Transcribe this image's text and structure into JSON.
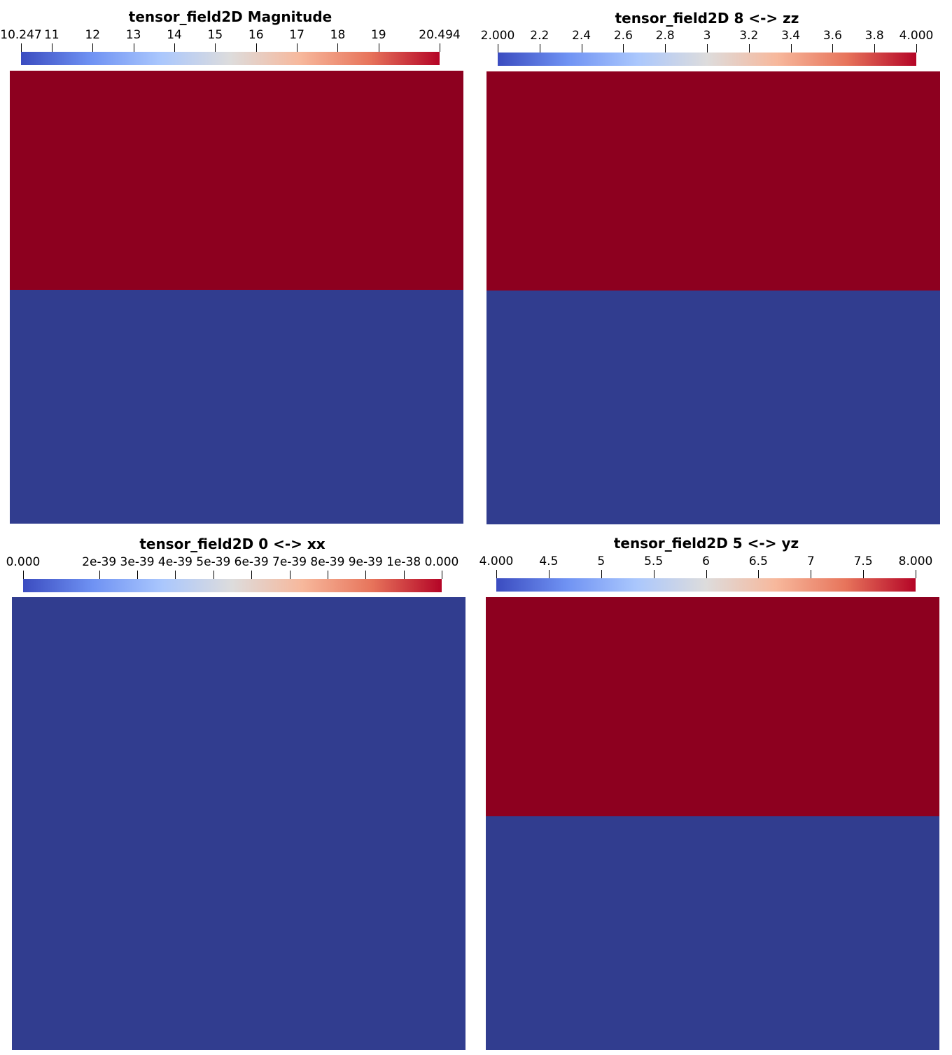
{
  "colors": {
    "low": "#313d8f",
    "high": "#8d001f",
    "gradient": [
      "#3b4cc0",
      "#6f92f3",
      "#aac7fd",
      "#dddcdc",
      "#f7b89c",
      "#e7745b",
      "#b40426"
    ]
  },
  "chart_data": [
    {
      "type": "heatmap",
      "title": "tensor_field2D Magnitude",
      "range": [
        10.247,
        20.494
      ],
      "ticks": [
        {
          "value": 10.247,
          "label": "10.247"
        },
        {
          "value": 11,
          "label": "11"
        },
        {
          "value": 12,
          "label": "12"
        },
        {
          "value": 13,
          "label": "13"
        },
        {
          "value": 14,
          "label": "14"
        },
        {
          "value": 15,
          "label": "15"
        },
        {
          "value": 16,
          "label": "16"
        },
        {
          "value": 17,
          "label": "17"
        },
        {
          "value": 18,
          "label": "18"
        },
        {
          "value": 19,
          "label": "19"
        },
        {
          "value": 20.494,
          "label": "20.494"
        }
      ],
      "cells": [
        {
          "region": "top",
          "value": 20.494
        },
        {
          "region": "bottom",
          "value": 10.247
        }
      ]
    },
    {
      "type": "heatmap",
      "title": "tensor_field2D 8 <-> zz",
      "range": [
        2.0,
        4.0
      ],
      "ticks": [
        {
          "value": 2.0,
          "label": "2.000"
        },
        {
          "value": 2.2,
          "label": "2.2"
        },
        {
          "value": 2.4,
          "label": "2.4"
        },
        {
          "value": 2.6,
          "label": "2.6"
        },
        {
          "value": 2.8,
          "label": "2.8"
        },
        {
          "value": 3.0,
          "label": "3"
        },
        {
          "value": 3.2,
          "label": "3.2"
        },
        {
          "value": 3.4,
          "label": "3.4"
        },
        {
          "value": 3.6,
          "label": "3.6"
        },
        {
          "value": 3.8,
          "label": "3.8"
        },
        {
          "value": 4.0,
          "label": "4.000"
        }
      ],
      "cells": [
        {
          "region": "top",
          "value": 4.0
        },
        {
          "region": "bottom",
          "value": 2.0
        }
      ]
    },
    {
      "type": "heatmap",
      "title": "tensor_field2D 0 <-> xx",
      "range": [
        0,
        1.1e-38
      ],
      "ticks": [
        {
          "value": 0,
          "label": "0.000"
        },
        {
          "value": 2e-39,
          "label": "2e-39"
        },
        {
          "value": 3e-39,
          "label": "3e-39"
        },
        {
          "value": 4e-39,
          "label": "4e-39"
        },
        {
          "value": 5e-39,
          "label": "5e-39"
        },
        {
          "value": 6e-39,
          "label": "6e-39"
        },
        {
          "value": 7e-39,
          "label": "7e-39"
        },
        {
          "value": 8e-39,
          "label": "8e-39"
        },
        {
          "value": 9e-39,
          "label": "9e-39"
        },
        {
          "value": 1e-38,
          "label": "1e-38"
        },
        {
          "value": 1.1e-38,
          "label": "0.000"
        }
      ],
      "cells": [
        {
          "region": "full",
          "value": 0
        }
      ]
    },
    {
      "type": "heatmap",
      "title": "tensor_field2D 5 <-> yz",
      "range": [
        4.0,
        8.0
      ],
      "ticks": [
        {
          "value": 4.0,
          "label": "4.000"
        },
        {
          "value": 4.5,
          "label": "4.5"
        },
        {
          "value": 5.0,
          "label": "5"
        },
        {
          "value": 5.5,
          "label": "5.5"
        },
        {
          "value": 6.0,
          "label": "6"
        },
        {
          "value": 6.5,
          "label": "6.5"
        },
        {
          "value": 7.0,
          "label": "7"
        },
        {
          "value": 7.5,
          "label": "7.5"
        },
        {
          "value": 8.0,
          "label": "8.000"
        }
      ],
      "cells": [
        {
          "region": "top",
          "value": 8.0
        },
        {
          "region": "bottom",
          "value": 4.0
        }
      ]
    }
  ]
}
